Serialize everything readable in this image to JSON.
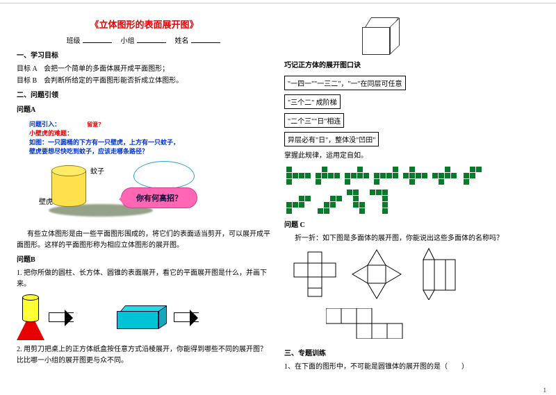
{
  "doc": {
    "title": "《立体图形的表面展开图》",
    "fill_labels": {
      "banji": "班级",
      "xiaozu": "小组",
      "xingming": "姓名"
    },
    "page_number": "1"
  },
  "left": {
    "sec1_h": "一、学习目标",
    "goalA": "目标 A　会把一个简单的多面体展开成平面图形；",
    "goalB": "目标 B　会判断所给定的平面图形能否折成立体图形。",
    "sec2_h": "二、问题引领",
    "qA_h": "问题A",
    "intro1": "问题引入：",
    "intro_red": "留意？",
    "intro2": "小壁虎的难题：",
    "intro3": "如图：一只圆桶的下方有一只壁虎，上方有一只蚊子，",
    "intro4": "壁虎要想尽快吃到蚊子，应该走哪条路径？",
    "mosquito": "蚊子",
    "gecko": "壁虎",
    "callout": "你有何高招？",
    "para1": "有些立体图形是由一些平面图形围成的，将它们的表面适当剪开，可以展开成平面图形。这样的平面图形称为相应立体图形的展开图。",
    "qB_h": "问题B",
    "qB1": "1. 把你所做的圆柱、长方体、圆锥的表面展开，看它的平面展开图是什么，并画下来。",
    "qB2": "2. 用剪刀把桌上的正方体纸盒按任意方式沿棱展开，你能得到哪些不同的展开图？比比哪一小组的展开图更与众不同。"
  },
  "right": {
    "rule_h": "巧记正方体的展开图口诀",
    "rule1": "\"一四一\"\"一三二\"，\"一\"在同层可任意",
    "rule2": "\"三个二\" 成阶梯",
    "rule3": "\"二个三\"\"日\"相连",
    "rule4": "异层必有\"日\"，整体没\"凹田\"",
    "rule_note": "掌握此规律，运用定自如。",
    "qC_h": "问题 C",
    "qC_text": "折一折：如下图是多面体的展开图，你能说出这些多面体的名称吗？",
    "sec3_h": "三、专题训练",
    "train1": "1、在下面的图形中，不可能是圆锥体的展开图的是（　　）"
  },
  "style": {
    "net_fill": "#0a7a2a",
    "net_gap": "#ffffff",
    "cell": 9
  }
}
